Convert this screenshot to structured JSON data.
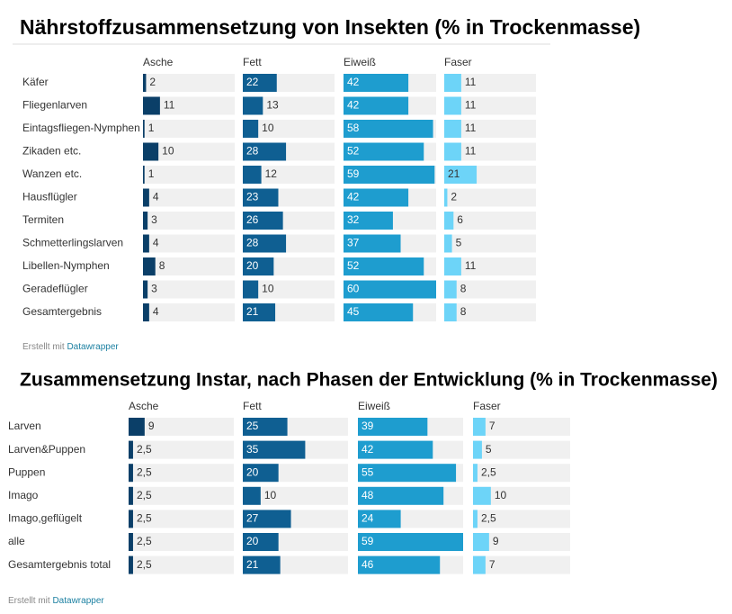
{
  "chart_data": [
    {
      "type": "bar",
      "title": "Nährstoffzusammensetzung von Insekten (% in Trockenmasse)",
      "categories": [
        "Käfer",
        "Fliegenlarven",
        "Eintagsfliegen-Nymphen",
        "Zikaden etc.",
        "Wanzen etc.",
        "Hausflügler",
        "Termiten",
        "Schmetterlingslarven",
        "Libellen-Nymphen",
        "Geradeflügler",
        "Gesamtergebnis"
      ],
      "series": [
        {
          "name": "Asche",
          "color": "#0b3f68",
          "values": [
            2,
            11,
            1,
            10,
            1,
            4,
            3,
            4,
            8,
            3,
            4
          ]
        },
        {
          "name": "Fett",
          "color": "#0f5f92",
          "values": [
            22,
            13,
            10,
            28,
            12,
            23,
            26,
            28,
            20,
            10,
            21
          ]
        },
        {
          "name": "Eiweiß",
          "color": "#1e9dcf",
          "values": [
            42,
            42,
            58,
            52,
            59,
            42,
            32,
            37,
            52,
            60,
            45
          ]
        },
        {
          "name": "Faser",
          "color": "#6dd4f8",
          "values": [
            11,
            11,
            11,
            11,
            21,
            2,
            6,
            5,
            11,
            8,
            8
          ]
        }
      ],
      "xlim": [
        0,
        60
      ],
      "credit_prefix": "Erstellt mit",
      "credit_link": "Datawrapper"
    },
    {
      "type": "bar",
      "title": "Zusammensetzung Instar, nach Phasen der Entwicklung (% in Trockenmasse)",
      "categories": [
        "Larven",
        "Larven&Puppen",
        "Puppen",
        "Imago",
        "Imago,geflügelt",
        "alle",
        "Gesamtergebnis total"
      ],
      "series": [
        {
          "name": "Asche",
          "color": "#0b3f68",
          "values": [
            9,
            2.5,
            2.5,
            2.5,
            2.5,
            2.5,
            2.5
          ],
          "value_labels": [
            "9",
            "2,5",
            "2,5",
            "2,5",
            "2,5",
            "2,5",
            "2,5"
          ]
        },
        {
          "name": "Fett",
          "color": "#0f5f92",
          "values": [
            25,
            35,
            20,
            10,
            27,
            20,
            21
          ]
        },
        {
          "name": "Eiweiß",
          "color": "#1e9dcf",
          "values": [
            39,
            42,
            55,
            48,
            24,
            59,
            46
          ]
        },
        {
          "name": "Faser",
          "color": "#6dd4f8",
          "values": [
            7,
            5,
            2.5,
            10,
            2.5,
            9,
            7
          ],
          "value_labels": [
            "7",
            "5",
            "2,5",
            "10",
            "2,5",
            "9",
            "7"
          ]
        }
      ],
      "xlim": [
        0,
        59
      ],
      "credit_prefix": "Erstellt mit",
      "credit_link": "Datawrapper"
    }
  ]
}
